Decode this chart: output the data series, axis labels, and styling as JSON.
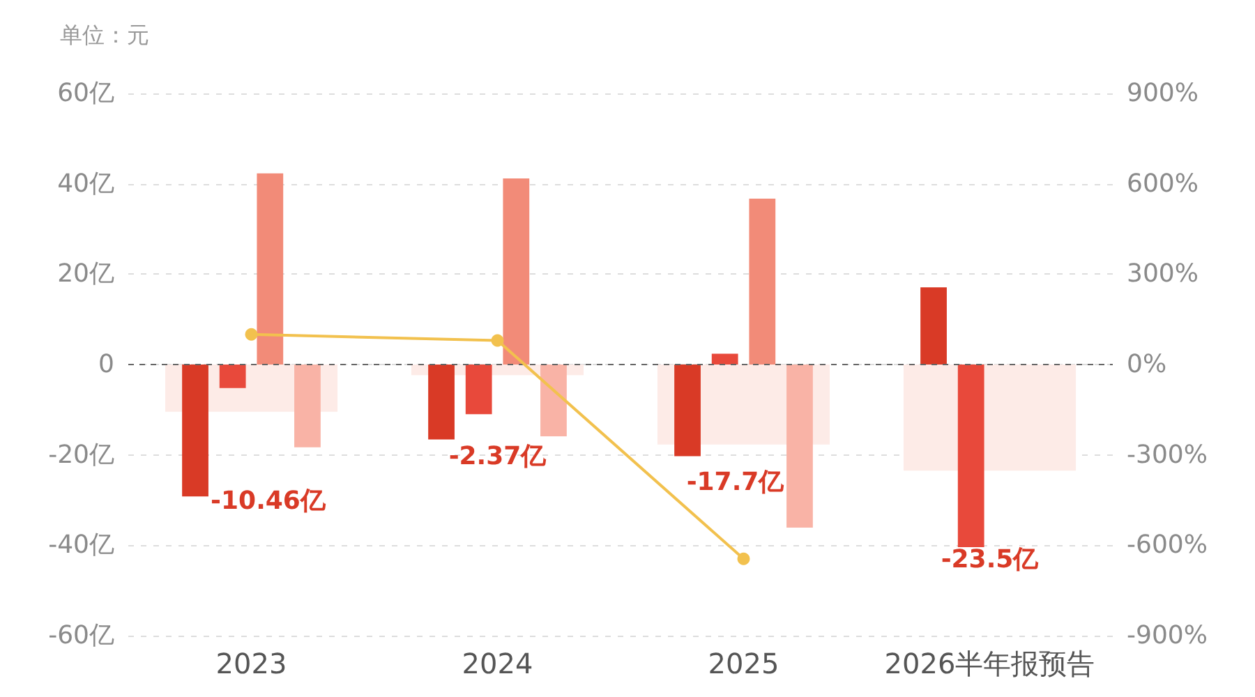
{
  "chart_data": {
    "type": "bar",
    "ylabel": "单位：元",
    "categories": [
      "2023",
      "2024",
      "2025",
      "2026半年报预告"
    ],
    "series": [
      {
        "color": "#fdebe7",
        "values": [
          -10.46,
          -2.37,
          -17.7,
          -23.5
        ],
        "value_labels": [
          "-10.46亿",
          "-2.37亿",
          "-17.7亿",
          "-23.5亿"
        ]
      },
      {
        "color": "#d93a26",
        "values": [
          -29.2,
          -16.6,
          -20.3,
          17.1
        ]
      },
      {
        "color": "#e8493b",
        "values": [
          -5.2,
          -11.0,
          2.4,
          -40.4
        ]
      },
      {
        "color": "#f28b78",
        "values": [
          42.3,
          41.2,
          36.7,
          null
        ]
      },
      {
        "color": "#f9b3a6",
        "values": [
          -18.3,
          -15.9,
          -36.1,
          null
        ]
      },
      {
        "type": "line",
        "axis": "y2",
        "color": "#f2c14e",
        "values": [
          100,
          80,
          -645,
          null
        ]
      }
    ],
    "ylim": [
      -60,
      60
    ],
    "yticks": [
      {
        "value": -60,
        "label": "-60亿"
      },
      {
        "value": -40,
        "label": "-40亿"
      },
      {
        "value": -20,
        "label": "-20亿"
      },
      0,
      {
        "value": 20,
        "label": "20亿"
      },
      {
        "value": 40,
        "label": "40亿"
      },
      {
        "value": 60,
        "label": "60亿"
      }
    ],
    "y2lim": [
      -900,
      900
    ],
    "y2ticks": [
      {
        "value": -900,
        "label": "-900%"
      },
      {
        "value": -600,
        "label": "-600%"
      },
      {
        "value": -300,
        "label": "-300%"
      },
      {
        "value": 0,
        "label": "0%"
      },
      {
        "value": 300,
        "label": "300%"
      },
      {
        "value": 600,
        "label": "600%"
      },
      {
        "value": 900,
        "label": "900%"
      }
    ],
    "ref_lines": [
      {
        "axis": "y",
        "value": 0,
        "color": "#666666",
        "line_style": "dashed"
      }
    ],
    "grid": "y",
    "marker": "circle"
  }
}
